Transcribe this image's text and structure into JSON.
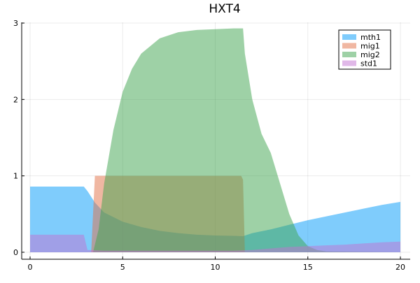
{
  "chart_data": {
    "type": "area",
    "title": "HXT4",
    "xlabel": "",
    "ylabel": "",
    "xlim": [
      0,
      20
    ],
    "ylim": [
      0,
      3
    ],
    "grid": true,
    "legend_position": "top-right",
    "x_ticks": [
      0,
      5,
      10,
      15,
      20
    ],
    "y_ticks": [
      0,
      1,
      2,
      3
    ],
    "series": [
      {
        "name": "mth1",
        "color": "#009af9",
        "opacity": 0.5,
        "points": [
          [
            0,
            0.86
          ],
          [
            1,
            0.86
          ],
          [
            2,
            0.86
          ],
          [
            2.9,
            0.86
          ],
          [
            3.1,
            0.8
          ],
          [
            3.5,
            0.65
          ],
          [
            4,
            0.52
          ],
          [
            5,
            0.4
          ],
          [
            6,
            0.33
          ],
          [
            7,
            0.28
          ],
          [
            8,
            0.25
          ],
          [
            9,
            0.23
          ],
          [
            10,
            0.22
          ],
          [
            11,
            0.215
          ],
          [
            11.5,
            0.21
          ],
          [
            12,
            0.25
          ],
          [
            13,
            0.3
          ],
          [
            14,
            0.36
          ],
          [
            15,
            0.42
          ],
          [
            16,
            0.47
          ],
          [
            17,
            0.52
          ],
          [
            18,
            0.57
          ],
          [
            19,
            0.62
          ],
          [
            20,
            0.66
          ]
        ]
      },
      {
        "name": "mig1",
        "color": "#e26f46",
        "opacity": 0.5,
        "points": [
          [
            0,
            0
          ],
          [
            3.3,
            0
          ],
          [
            3.5,
            1.0
          ],
          [
            4,
            1.0
          ],
          [
            11.4,
            1.0
          ],
          [
            11.5,
            0.95
          ],
          [
            11.6,
            0
          ],
          [
            20,
            0
          ]
        ]
      },
      {
        "name": "mig2",
        "color": "#3da44d",
        "opacity": 0.5,
        "points": [
          [
            0,
            0
          ],
          [
            3.4,
            0
          ],
          [
            3.7,
            0.3
          ],
          [
            4,
            0.9
          ],
          [
            4.5,
            1.6
          ],
          [
            5,
            2.1
          ],
          [
            5.5,
            2.4
          ],
          [
            6,
            2.6
          ],
          [
            7,
            2.8
          ],
          [
            8,
            2.88
          ],
          [
            9,
            2.91
          ],
          [
            10,
            2.92
          ],
          [
            11,
            2.93
          ],
          [
            11.5,
            2.93
          ],
          [
            11.6,
            2.6
          ],
          [
            12,
            2.0
          ],
          [
            12.5,
            1.55
          ],
          [
            13,
            1.3
          ],
          [
            13.5,
            0.9
          ],
          [
            14,
            0.5
          ],
          [
            14.5,
            0.22
          ],
          [
            15,
            0.08
          ],
          [
            15.5,
            0.03
          ],
          [
            16,
            0.01
          ],
          [
            20,
            0
          ]
        ]
      },
      {
        "name": "std1",
        "color": "#c271d2",
        "opacity": 0.5,
        "points": [
          [
            0,
            0.23
          ],
          [
            2.9,
            0.23
          ],
          [
            3.1,
            0.03
          ],
          [
            4,
            0.02
          ],
          [
            11,
            0.02
          ],
          [
            12,
            0.03
          ],
          [
            13,
            0.05
          ],
          [
            14,
            0.07
          ],
          [
            15,
            0.08
          ],
          [
            16,
            0.09
          ],
          [
            17,
            0.1
          ],
          [
            18,
            0.115
          ],
          [
            19,
            0.13
          ],
          [
            20,
            0.14
          ]
        ]
      }
    ]
  }
}
